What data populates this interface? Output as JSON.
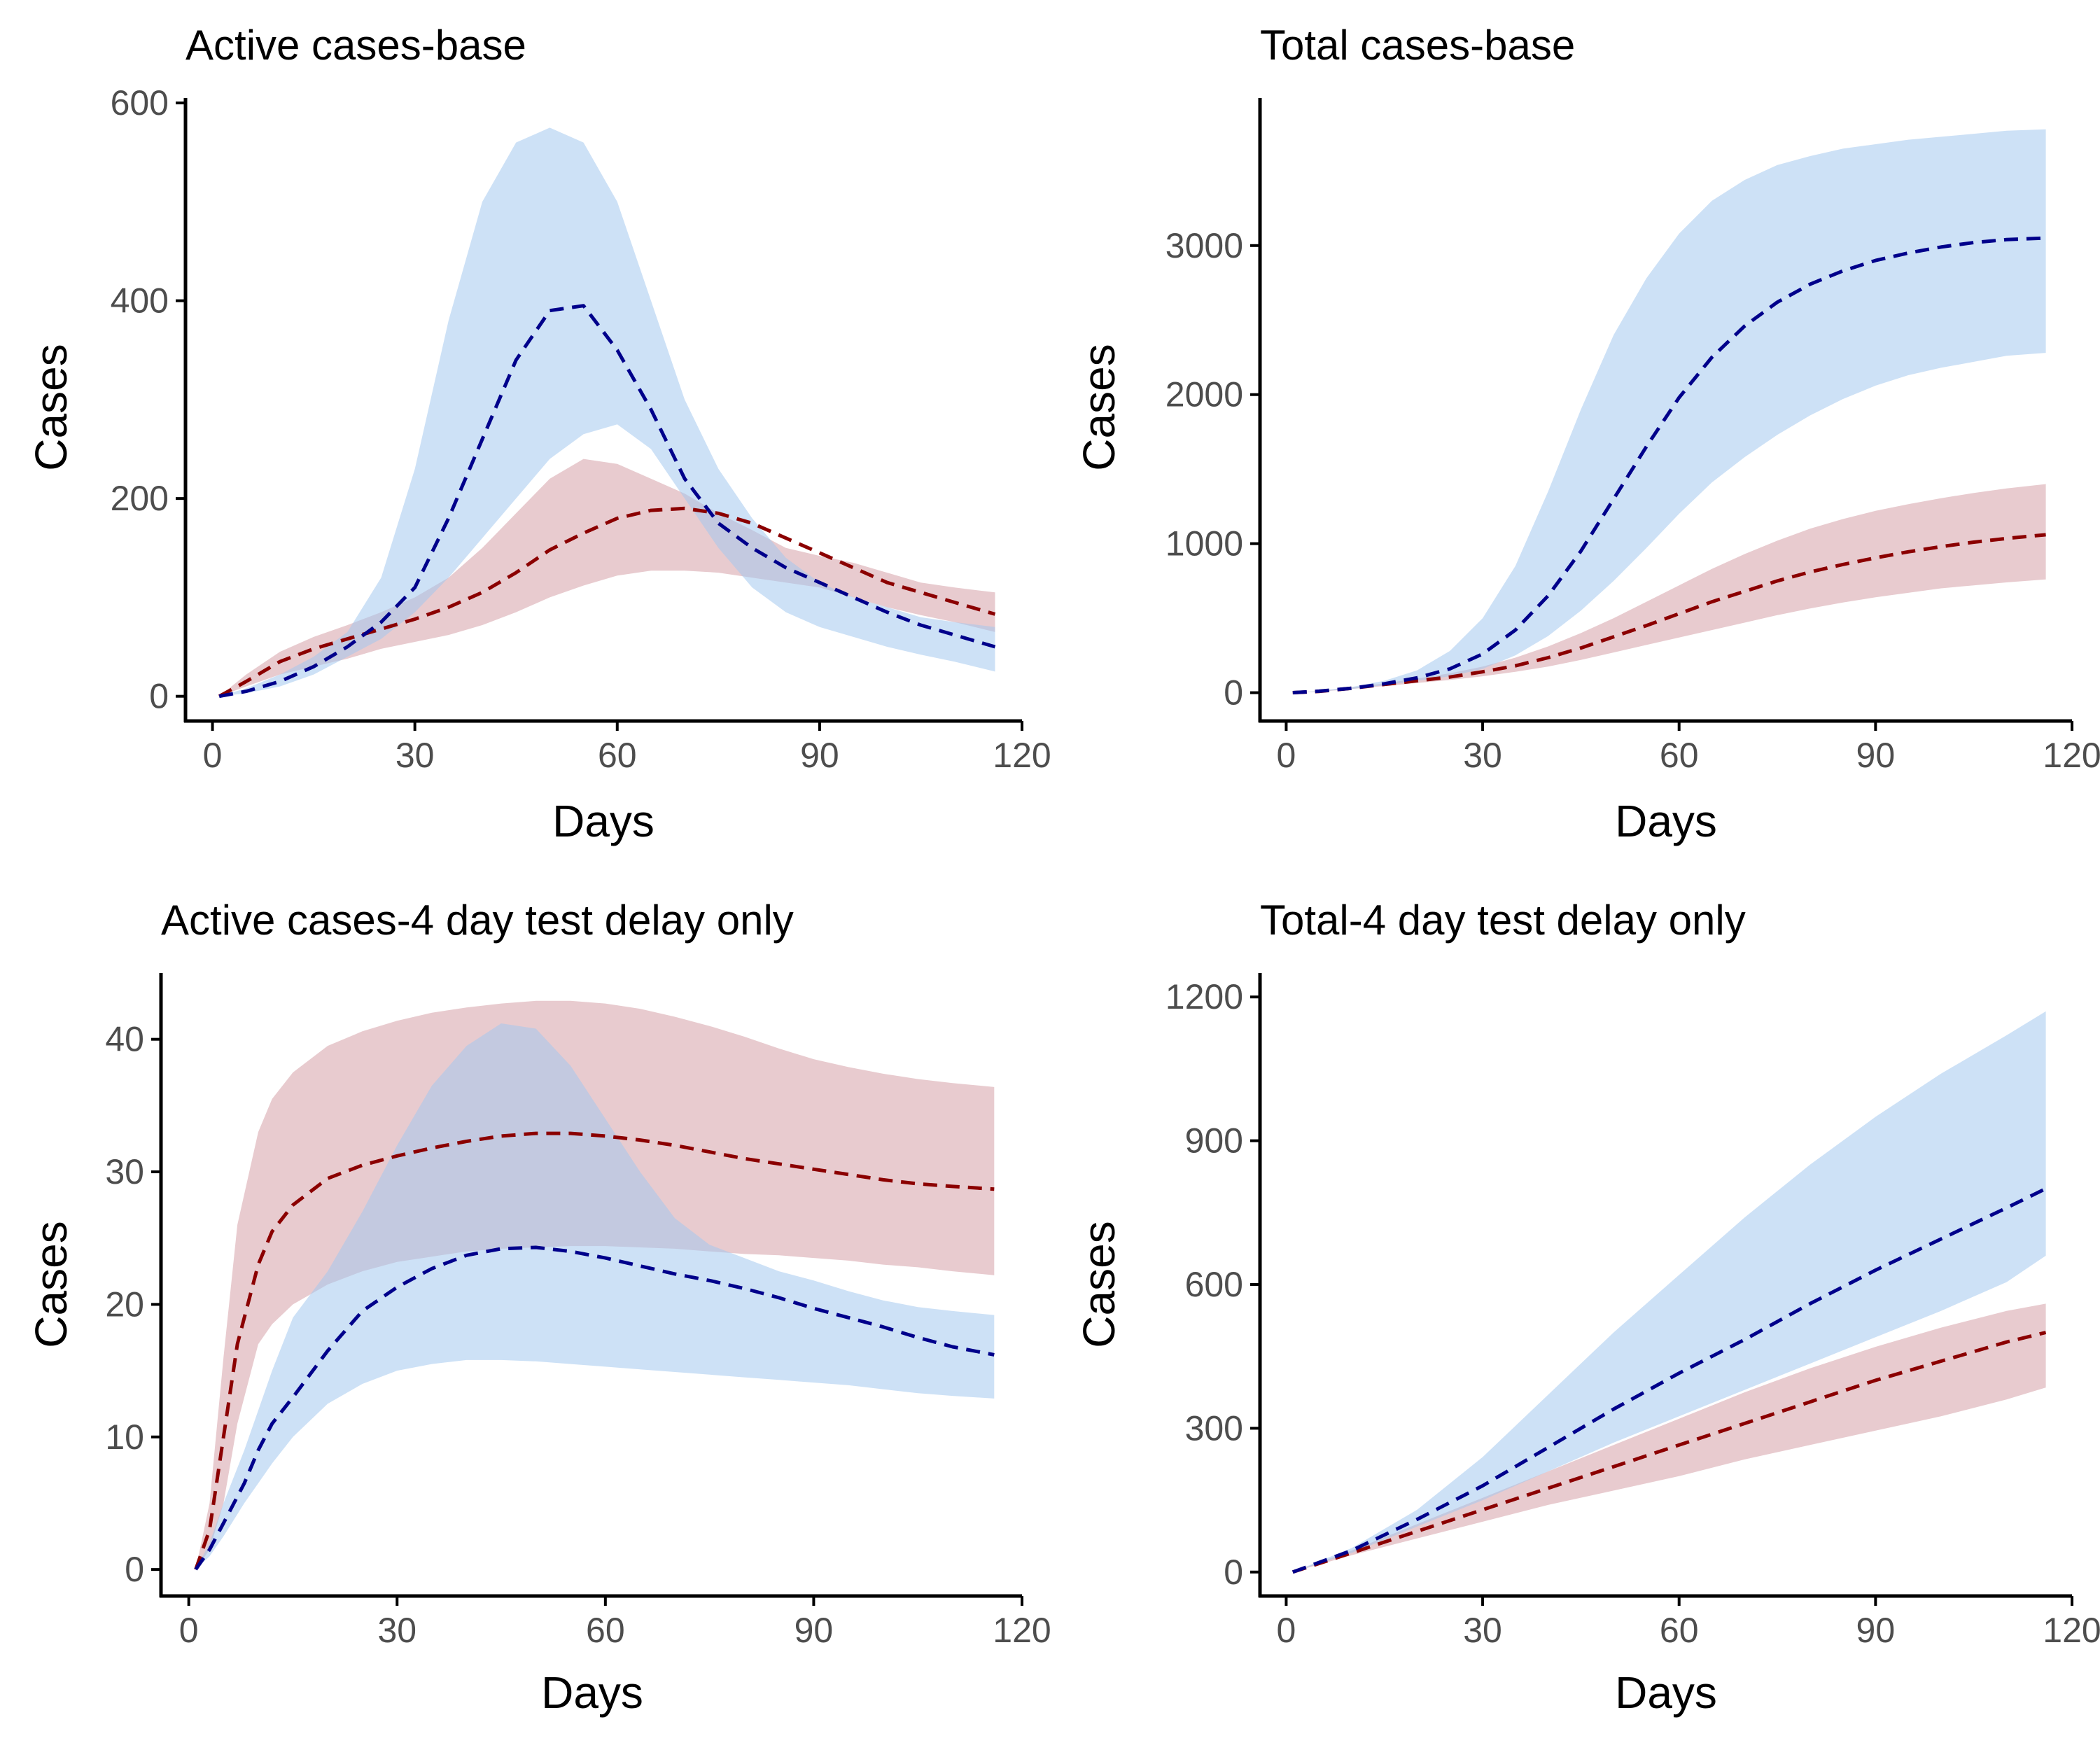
{
  "colors": {
    "red_line": "#8b0000",
    "red_band": "#cd8c95",
    "blue_line": "#00008b",
    "blue_band": "#a4c8ef"
  },
  "chart_data": [
    {
      "type": "area",
      "title": "Active cases-base",
      "xlabel": "Days",
      "ylabel": "Cases",
      "xlim": [
        -4,
        120
      ],
      "ylim": [
        -25,
        605
      ],
      "xticks": [
        0,
        30,
        60,
        90,
        120
      ],
      "yticks": [
        0,
        200,
        400,
        600
      ],
      "grid": false,
      "legend": "none",
      "series": [
        {
          "color_key": "red",
          "x": [
            1,
            5,
            10,
            15,
            20,
            25,
            30,
            35,
            40,
            45,
            50,
            55,
            60,
            65,
            70,
            75,
            80,
            85,
            90,
            95,
            100,
            105,
            110,
            116
          ],
          "mean": [
            0,
            15,
            35,
            48,
            58,
            68,
            78,
            90,
            105,
            125,
            148,
            165,
            180,
            188,
            190,
            185,
            175,
            160,
            145,
            130,
            115,
            105,
            95,
            83
          ],
          "lower": [
            0,
            10,
            22,
            30,
            38,
            48,
            55,
            62,
            72,
            85,
            100,
            112,
            122,
            127,
            127,
            125,
            120,
            115,
            110,
            100,
            90,
            82,
            75,
            65
          ],
          "upper": [
            0,
            22,
            45,
            60,
            72,
            85,
            100,
            120,
            150,
            185,
            220,
            240,
            235,
            220,
            205,
            185,
            168,
            150,
            142,
            135,
            125,
            115,
            110,
            105
          ]
        },
        {
          "color_key": "blue",
          "x": [
            1,
            5,
            10,
            15,
            20,
            25,
            30,
            35,
            40,
            45,
            50,
            55,
            60,
            65,
            70,
            75,
            80,
            85,
            90,
            95,
            100,
            105,
            110,
            116
          ],
          "mean": [
            0,
            5,
            15,
            30,
            50,
            75,
            110,
            180,
            260,
            340,
            390,
            395,
            350,
            290,
            220,
            175,
            150,
            130,
            115,
            100,
            85,
            72,
            62,
            50
          ],
          "lower": [
            0,
            3,
            10,
            22,
            40,
            58,
            85,
            120,
            160,
            200,
            240,
            265,
            275,
            250,
            200,
            150,
            110,
            85,
            70,
            60,
            50,
            42,
            35,
            25
          ],
          "upper": [
            0,
            8,
            22,
            40,
            65,
            120,
            230,
            380,
            500,
            560,
            575,
            560,
            500,
            400,
            300,
            230,
            180,
            140,
            115,
            100,
            90,
            80,
            75,
            70
          ]
        }
      ]
    },
    {
      "type": "area",
      "title": "Total cases-base",
      "xlabel": "Days",
      "ylabel": "Cases",
      "xlim": [
        -4,
        120
      ],
      "ylim": [
        -190,
        3990
      ],
      "xticks": [
        0,
        30,
        60,
        90,
        120
      ],
      "yticks": [
        0,
        1000,
        2000,
        3000
      ],
      "grid": false,
      "legend": "none",
      "series": [
        {
          "color_key": "red",
          "x": [
            1,
            5,
            10,
            15,
            20,
            25,
            30,
            35,
            40,
            45,
            50,
            55,
            60,
            65,
            70,
            75,
            80,
            85,
            90,
            95,
            100,
            105,
            110,
            116
          ],
          "mean": [
            0,
            8,
            30,
            55,
            80,
            105,
            140,
            180,
            235,
            300,
            375,
            450,
            530,
            610,
            680,
            750,
            810,
            860,
            905,
            945,
            980,
            1010,
            1035,
            1060
          ],
          "lower": [
            0,
            6,
            25,
            45,
            65,
            85,
            110,
            140,
            175,
            220,
            270,
            320,
            370,
            420,
            470,
            520,
            565,
            605,
            640,
            670,
            700,
            720,
            740,
            760
          ],
          "upper": [
            0,
            10,
            35,
            62,
            95,
            130,
            175,
            235,
            310,
            400,
            500,
            610,
            720,
            830,
            930,
            1020,
            1100,
            1165,
            1220,
            1265,
            1305,
            1340,
            1370,
            1400
          ]
        },
        {
          "color_key": "blue",
          "x": [
            1,
            5,
            10,
            15,
            20,
            25,
            30,
            35,
            40,
            45,
            50,
            55,
            60,
            65,
            70,
            75,
            80,
            85,
            90,
            95,
            100,
            105,
            110,
            116
          ],
          "mean": [
            0,
            10,
            30,
            60,
            100,
            160,
            260,
            420,
            650,
            950,
            1300,
            1650,
            1980,
            2250,
            2460,
            2620,
            2740,
            2830,
            2900,
            2950,
            2990,
            3020,
            3040,
            3050
          ],
          "lower": [
            0,
            8,
            25,
            50,
            80,
            110,
            160,
            250,
            380,
            550,
            750,
            970,
            1200,
            1410,
            1580,
            1730,
            1860,
            1970,
            2060,
            2130,
            2180,
            2220,
            2260,
            2280
          ],
          "upper": [
            0,
            12,
            38,
            80,
            150,
            280,
            500,
            850,
            1350,
            1900,
            2400,
            2780,
            3080,
            3300,
            3440,
            3540,
            3600,
            3650,
            3680,
            3710,
            3730,
            3750,
            3770,
            3780
          ]
        }
      ]
    },
    {
      "type": "area",
      "title": "Active cases-4 day test delay only",
      "xlabel": "Days",
      "ylabel": "Cases",
      "xlim": [
        -4,
        120
      ],
      "ylim": [
        -2,
        45
      ],
      "xticks": [
        0,
        30,
        60,
        90,
        120
      ],
      "yticks": [
        0,
        10,
        20,
        30,
        40
      ],
      "grid": false,
      "legend": "none",
      "series": [
        {
          "color_key": "red",
          "x": [
            1,
            3,
            5,
            7,
            10,
            12,
            15,
            20,
            25,
            30,
            35,
            40,
            45,
            50,
            55,
            60,
            65,
            70,
            75,
            80,
            85,
            90,
            95,
            100,
            105,
            110,
            116
          ],
          "mean": [
            0,
            3,
            10,
            17,
            23,
            25.5,
            27.5,
            29.5,
            30.5,
            31.2,
            31.8,
            32.3,
            32.7,
            32.9,
            32.9,
            32.7,
            32.4,
            32,
            31.5,
            31,
            30.6,
            30.2,
            29.8,
            29.4,
            29.1,
            28.9,
            28.7
          ],
          "lower": [
            0,
            1.5,
            5,
            11,
            17,
            18.5,
            20,
            21.5,
            22.5,
            23.2,
            23.6,
            24,
            24.2,
            24.3,
            24.4,
            24.4,
            24.3,
            24.2,
            24,
            23.8,
            23.7,
            23.5,
            23.3,
            23,
            22.8,
            22.5,
            22.2
          ],
          "upper": [
            0,
            5,
            16,
            26,
            33,
            35.5,
            37.5,
            39.5,
            40.6,
            41.4,
            42,
            42.4,
            42.7,
            42.9,
            42.9,
            42.7,
            42.3,
            41.7,
            41,
            40.2,
            39.3,
            38.5,
            37.9,
            37.4,
            37,
            36.7,
            36.4
          ]
        },
        {
          "color_key": "blue",
          "x": [
            1,
            3,
            5,
            8,
            10,
            12,
            15,
            20,
            25,
            30,
            35,
            40,
            45,
            50,
            55,
            60,
            65,
            70,
            75,
            80,
            85,
            90,
            95,
            100,
            105,
            110,
            116
          ],
          "mean": [
            0,
            1.5,
            3.5,
            6.5,
            9,
            11,
            13,
            16.5,
            19.5,
            21.3,
            22.7,
            23.7,
            24.2,
            24.3,
            24,
            23.5,
            22.9,
            22.3,
            21.8,
            21.2,
            20.5,
            19.7,
            19,
            18.3,
            17.5,
            16.8,
            16.2
          ],
          "lower": [
            0,
            1,
            2.5,
            5,
            6.5,
            8,
            10,
            12.5,
            14,
            15,
            15.5,
            15.8,
            15.8,
            15.7,
            15.5,
            15.3,
            15.1,
            14.9,
            14.7,
            14.5,
            14.3,
            14.1,
            13.9,
            13.6,
            13.3,
            13.1,
            12.9
          ],
          "upper": [
            0,
            2,
            5,
            9,
            12,
            15,
            19,
            22.5,
            27,
            32,
            36.5,
            39.5,
            41.2,
            40.8,
            38,
            34,
            30,
            26.5,
            24.5,
            23.5,
            22.5,
            21.8,
            21,
            20.3,
            19.8,
            19.5,
            19.2
          ]
        }
      ]
    },
    {
      "type": "area",
      "title": "Total-4 day test delay only",
      "xlabel": "Days",
      "ylabel": "Cases",
      "xlim": [
        -4,
        120
      ],
      "ylim": [
        -50,
        1250
      ],
      "xticks": [
        0,
        30,
        60,
        90,
        120
      ],
      "yticks": [
        0,
        300,
        600,
        900,
        1200
      ],
      "grid": false,
      "legend": "none",
      "series": [
        {
          "color_key": "red",
          "x": [
            1,
            10,
            20,
            30,
            40,
            50,
            60,
            70,
            80,
            90,
            100,
            110,
            116
          ],
          "mean": [
            0,
            40,
            85,
            130,
            175,
            220,
            265,
            310,
            355,
            400,
            440,
            480,
            500
          ],
          "lower": [
            0,
            35,
            70,
            105,
            140,
            170,
            200,
            235,
            265,
            295,
            325,
            360,
            385
          ],
          "upper": [
            0,
            45,
            100,
            155,
            210,
            265,
            320,
            375,
            425,
            470,
            510,
            545,
            560
          ]
        },
        {
          "color_key": "blue",
          "x": [
            1,
            10,
            20,
            30,
            40,
            50,
            60,
            70,
            80,
            90,
            100,
            110,
            116
          ],
          "mean": [
            0,
            45,
            110,
            180,
            260,
            340,
            415,
            485,
            560,
            630,
            695,
            760,
            800
          ],
          "lower": [
            0,
            40,
            95,
            150,
            210,
            270,
            325,
            380,
            435,
            490,
            545,
            605,
            660
          ],
          "upper": [
            0,
            50,
            130,
            240,
            370,
            500,
            620,
            740,
            850,
            950,
            1040,
            1120,
            1170
          ]
        }
      ]
    }
  ]
}
